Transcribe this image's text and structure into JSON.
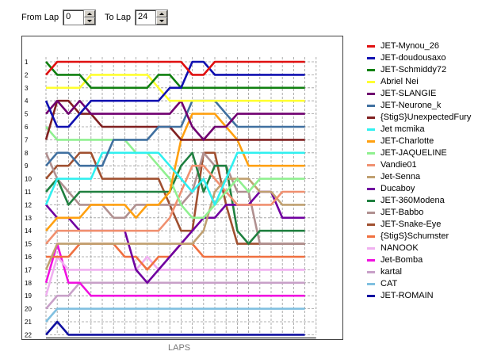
{
  "controls": {
    "from_label": "From Lap",
    "from_value": "0",
    "to_label": "To Lap",
    "to_value": "24"
  },
  "chart_data": {
    "type": "line",
    "title": "",
    "xlabel": "LAPS",
    "ylabel": "",
    "xlim": [
      0,
      24
    ],
    "ylim": [
      1,
      22
    ],
    "y_inverted": true,
    "grid": true,
    "legend_position": "right",
    "x": [
      0,
      1,
      2,
      3,
      4,
      5,
      6,
      7,
      8,
      9,
      10,
      11,
      12,
      13,
      14,
      15,
      16,
      17,
      18,
      19,
      20,
      21,
      22,
      23
    ],
    "y_ticks": [
      1,
      2,
      3,
      4,
      5,
      6,
      7,
      8,
      9,
      10,
      11,
      12,
      13,
      14,
      15,
      16,
      17,
      18,
      19,
      20,
      21,
      22
    ],
    "x_ticks": [
      0,
      1,
      2,
      3,
      4,
      5,
      6,
      7,
      8,
      9,
      10,
      11,
      12,
      13,
      14,
      15,
      16,
      17,
      18,
      19,
      20,
      21,
      22,
      23,
      24
    ],
    "series": [
      {
        "name": "JET-Mynou_26",
        "color": "#e01010",
        "values": [
          2,
          1,
          1,
          1,
          1,
          1,
          1,
          1,
          1,
          1,
          1,
          1,
          1,
          2,
          2,
          1,
          1,
          1,
          1,
          1,
          1,
          1,
          1,
          1
        ]
      },
      {
        "name": "JET-doudousaxo",
        "color": "#1010b0",
        "values": [
          4,
          6,
          6,
          5,
          4,
          4,
          4,
          4,
          4,
          4,
          4,
          3,
          3,
          1,
          1,
          2,
          2,
          2,
          2,
          2,
          2,
          2,
          2,
          2
        ]
      },
      {
        "name": "JET-Schmiddy72",
        "color": "#108010",
        "values": [
          1,
          2,
          2,
          2,
          3,
          3,
          3,
          3,
          3,
          3,
          2,
          2,
          3,
          3,
          3,
          3,
          3,
          3,
          3,
          3,
          3,
          3,
          3,
          3
        ]
      },
      {
        "name": "Abriel Nei",
        "color": "#ffff30",
        "values": [
          3,
          3,
          3,
          3,
          2,
          2,
          2,
          2,
          2,
          2,
          3,
          4,
          4,
          4,
          4,
          4,
          4,
          4,
          4,
          4,
          4,
          4,
          4,
          4
        ]
      },
      {
        "name": "JET-SLANGIE",
        "color": "#700070",
        "values": [
          5,
          4,
          5,
          4,
          5,
          5,
          5,
          5,
          5,
          5,
          5,
          5,
          4,
          6,
          7,
          6,
          6,
          5,
          5,
          5,
          5,
          5,
          5,
          5
        ]
      },
      {
        "name": "JET-Neurone_k",
        "color": "#4070a0",
        "values": [
          9,
          8,
          8,
          9,
          9,
          9,
          7,
          7,
          7,
          7,
          6,
          6,
          6,
          4,
          4,
          4,
          5,
          6,
          6,
          6,
          6,
          6,
          6,
          6
        ]
      },
      {
        "name": "{StigS}UnexpectedFury",
        "color": "#802020",
        "values": [
          7,
          4,
          4,
          5,
          5,
          6,
          6,
          6,
          6,
          6,
          6,
          6,
          7,
          7,
          7,
          7,
          7,
          7,
          7,
          7,
          7,
          7,
          7,
          7
        ]
      },
      {
        "name": "Jet mcmika",
        "color": "#30f0f0",
        "values": [
          12,
          10,
          10,
          10,
          10,
          8,
          8,
          8,
          8,
          8,
          8,
          9,
          10,
          11,
          10,
          12,
          10,
          8,
          8,
          8,
          8,
          8,
          8,
          8
        ]
      },
      {
        "name": "JET-Charlotte",
        "color": "#ffa010",
        "values": [
          14,
          13,
          13,
          13,
          12,
          12,
          12,
          12,
          13,
          12,
          12,
          11,
          7,
          5,
          5,
          5,
          6,
          7,
          9,
          9,
          9,
          9,
          9,
          9
        ]
      },
      {
        "name": "JET-JAQUELINE",
        "color": "#90f090",
        "values": [
          6,
          7,
          7,
          7,
          7,
          7,
          7,
          7,
          8,
          8,
          9,
          10,
          12,
          13,
          13,
          12,
          11,
          10,
          11,
          10,
          10,
          10,
          10,
          10
        ]
      },
      {
        "name": "Vandie01",
        "color": "#f09070",
        "values": [
          15,
          14,
          14,
          14,
          14,
          14,
          14,
          14,
          14,
          14,
          14,
          13,
          11,
          9,
          9,
          10,
          11,
          12,
          12,
          12,
          12,
          11,
          11,
          11
        ]
      },
      {
        "name": "Jet-Senna",
        "color": "#c0a070",
        "values": [
          17,
          15,
          15,
          15,
          15,
          15,
          15,
          15,
          15,
          15,
          15,
          15,
          15,
          15,
          14,
          11,
          10,
          10,
          10,
          11,
          11,
          12,
          12,
          12
        ]
      },
      {
        "name": "Ducaboy",
        "color": "#7000a0",
        "values": [
          12,
          13,
          13,
          14,
          14,
          14,
          14,
          14,
          17,
          18,
          17,
          16,
          15,
          14,
          13,
          13,
          12,
          12,
          12,
          11,
          11,
          13,
          13,
          13
        ]
      },
      {
        "name": "JET-360Modena",
        "color": "#208040",
        "values": [
          11,
          10,
          12,
          11,
          11,
          11,
          11,
          11,
          11,
          11,
          11,
          11,
          9,
          8,
          11,
          9,
          9,
          14,
          15,
          14,
          14,
          14,
          14,
          14
        ]
      },
      {
        "name": "JET-Babbo",
        "color": "#b09090",
        "values": [
          8,
          10,
          11,
          12,
          12,
          12,
          13,
          13,
          12,
          12,
          12,
          12,
          12,
          11,
          8,
          9,
          9,
          11,
          11,
          15,
          15,
          15,
          15,
          15
        ]
      },
      {
        "name": "JET-Snake-Eye",
        "color": "#a05030",
        "values": [
          10,
          9,
          9,
          8,
          8,
          10,
          10,
          10,
          10,
          10,
          10,
          12,
          14,
          14,
          8,
          8,
          12,
          15,
          15,
          15,
          15,
          15,
          15,
          15
        ]
      },
      {
        "name": "{StigS}Schumster",
        "color": "#f07040",
        "values": [
          16,
          16,
          16,
          15,
          15,
          15,
          15,
          16,
          16,
          17,
          16,
          16,
          15,
          15,
          16,
          16,
          16,
          16,
          16,
          16,
          16,
          16,
          16,
          16
        ]
      },
      {
        "name": "NANOOK",
        "color": "#f0b0f0",
        "values": [
          19,
          16,
          17,
          17,
          17,
          17,
          17,
          17,
          17,
          16,
          17,
          17,
          17,
          17,
          17,
          17,
          17,
          17,
          17,
          17,
          17,
          17,
          17,
          17
        ]
      },
      {
        "name": "Jet-Bomba",
        "color": "#f010e0",
        "values": [
          18,
          15,
          18,
          18,
          19,
          19,
          19,
          19,
          19,
          19,
          19,
          19,
          19,
          19,
          19,
          19,
          19,
          19,
          19,
          19,
          19,
          19,
          19,
          19
        ]
      },
      {
        "name": "kartal",
        "color": "#c8a0c8",
        "values": [
          20,
          19,
          19,
          18,
          18,
          18,
          18,
          18,
          18,
          18,
          18,
          18,
          18,
          18,
          18,
          18,
          18,
          18,
          18,
          18,
          18,
          18,
          18,
          18
        ]
      },
      {
        "name": "CAT",
        "color": "#80c0e0",
        "values": [
          21,
          20,
          20,
          20,
          20,
          20,
          20,
          20,
          20,
          20,
          20,
          20,
          20,
          20,
          20,
          20,
          20,
          20,
          20,
          20,
          20,
          20,
          20,
          20
        ]
      },
      {
        "name": "JET-ROMAIN",
        "color": "#1010a0",
        "values": [
          22,
          21,
          22,
          22,
          22,
          22,
          22,
          22,
          22,
          22,
          22,
          22,
          22,
          22,
          22,
          22,
          22,
          22,
          22,
          22,
          22,
          22,
          22,
          22
        ]
      }
    ]
  }
}
